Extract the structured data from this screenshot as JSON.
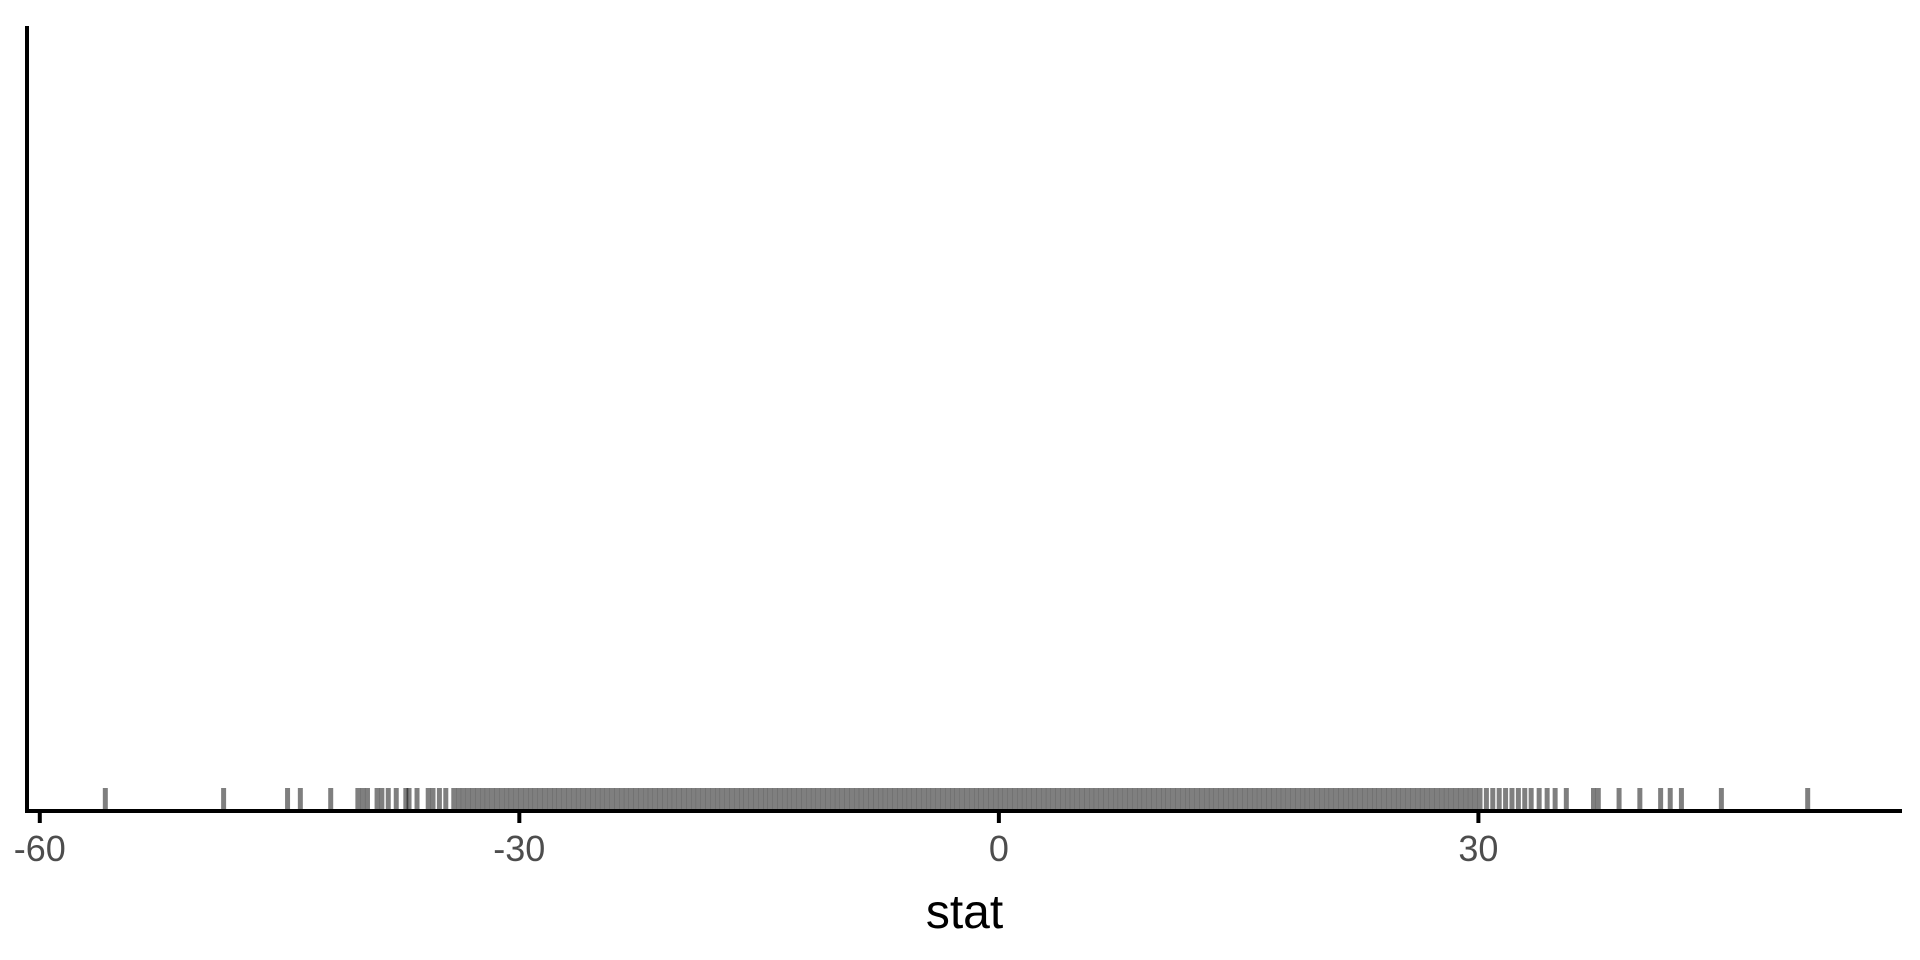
{
  "chart_data": {
    "type": "rug",
    "title": "",
    "xlabel": "stat",
    "ylabel": "",
    "xlim": [
      -60.8,
      56.5
    ],
    "x_ticks": [
      -60,
      -30,
      0,
      30
    ],
    "x_tick_labels": [
      "-60",
      "-30",
      "0",
      "30"
    ],
    "grid": false,
    "legend": "none",
    "rug_color": "#000000",
    "rug_opacity": 0.5,
    "values": [
      -55.9,
      -48.5,
      -44.5,
      -43.7,
      -41.8,
      -40.1,
      -39.8,
      -39.5,
      -38.9,
      -38.6,
      -38.2,
      -37.7,
      -37.1,
      -36.9,
      -36.4,
      -35.7,
      -35.4,
      -35.0,
      -34.6,
      -34.1,
      -33.8,
      -33.5,
      -33.2,
      -32.9,
      -32.6,
      -32.3,
      -32.0,
      -31.7,
      -31.4,
      -31.1,
      -30.8,
      -30.5,
      -30.2,
      -29.9,
      -29.6,
      -29.3,
      -29.0,
      -28.7,
      -28.4,
      -28.1,
      -27.8,
      -27.5,
      -27.2,
      -26.9,
      -26.6,
      -26.3,
      -26.0,
      -25.7,
      -25.4,
      -25.1,
      -24.8,
      -24.5,
      -24.2,
      -23.9,
      -23.6,
      -23.3,
      -23.0,
      -22.7,
      -22.4,
      -22.1,
      -21.8,
      -21.5,
      -21.2,
      -20.9,
      -20.6,
      -20.3,
      -20.0,
      -19.7,
      -19.4,
      -19.1,
      -18.8,
      -18.5,
      -18.2,
      -17.9,
      -17.6,
      -17.3,
      -17.0,
      -16.7,
      -16.4,
      -16.1,
      -15.8,
      -15.5,
      -15.2,
      -14.9,
      -14.6,
      -14.3,
      -14.0,
      -13.7,
      -13.4,
      -13.1,
      -12.8,
      -12.5,
      -12.2,
      -11.9,
      -11.6,
      -11.3,
      -11.0,
      -10.7,
      -10.4,
      -10.1,
      -9.8,
      -9.5,
      -9.2,
      -8.9,
      -8.6,
      -8.3,
      -8.0,
      -7.7,
      -7.4,
      -7.1,
      -6.8,
      -6.5,
      -6.2,
      -5.9,
      -5.6,
      -5.3,
      -5.0,
      -4.7,
      -4.4,
      -4.1,
      -3.8,
      -3.5,
      -3.2,
      -2.9,
      -2.6,
      -2.3,
      -2.0,
      -1.7,
      -1.4,
      -1.1,
      -0.8,
      -0.5,
      -0.2,
      0.1,
      0.4,
      0.7,
      1.0,
      1.3,
      1.6,
      1.9,
      2.2,
      2.5,
      2.8,
      3.1,
      3.4,
      3.7,
      4.0,
      4.3,
      4.6,
      4.9,
      5.2,
      5.5,
      5.8,
      6.1,
      6.4,
      6.7,
      7.0,
      7.3,
      7.6,
      7.9,
      8.2,
      8.5,
      8.8,
      9.1,
      9.4,
      9.7,
      10.0,
      10.3,
      10.6,
      10.9,
      11.2,
      11.5,
      11.8,
      12.1,
      12.4,
      12.7,
      13.0,
      13.3,
      13.6,
      13.9,
      14.2,
      14.5,
      14.8,
      15.1,
      15.4,
      15.7,
      16.0,
      16.3,
      16.6,
      16.9,
      17.2,
      17.5,
      17.8,
      18.1,
      18.4,
      18.7,
      19.0,
      19.3,
      19.6,
      19.9,
      20.2,
      20.5,
      20.8,
      21.1,
      21.4,
      21.7,
      22.0,
      22.3,
      22.6,
      22.9,
      23.2,
      23.5,
      23.8,
      24.1,
      24.4,
      24.7,
      25.0,
      25.3,
      25.6,
      25.9,
      26.2,
      26.5,
      26.8,
      27.1,
      27.4,
      27.7,
      28.0,
      28.3,
      28.6,
      28.9,
      29.2,
      29.5,
      29.8,
      30.1,
      30.5,
      30.9,
      31.3,
      31.7,
      32.1,
      32.5,
      32.9,
      33.3,
      33.8,
      34.3,
      34.8,
      35.5,
      37.2,
      37.5,
      38.8,
      40.1,
      41.4,
      42.0,
      42.7,
      45.2,
      50.6
    ]
  }
}
